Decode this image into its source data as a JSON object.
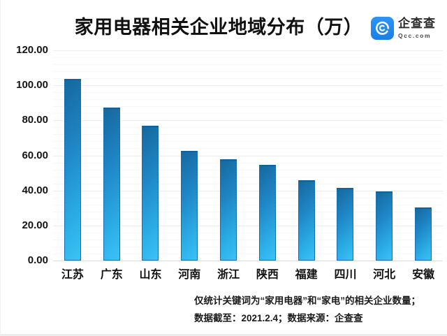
{
  "header": {
    "title": "家用电器相关企业地域分布（万）",
    "logo": {
      "name": "企查查",
      "domain": "Qcc.com",
      "brand_color": "#1f85ee"
    }
  },
  "chart_data": {
    "type": "bar",
    "title": "家用电器相关企业地域分布（万）",
    "categories": [
      "江苏",
      "广东",
      "山东",
      "河南",
      "浙江",
      "陕西",
      "福建",
      "四川",
      "河北",
      "安徽"
    ],
    "values": [
      103.5,
      87.5,
      77.0,
      62.5,
      58.0,
      54.5,
      46.0,
      41.5,
      39.5,
      30.5
    ],
    "xlabel": "",
    "ylabel": "",
    "ylim": [
      0,
      120
    ],
    "y_tick_labels": [
      "120.00",
      "100.00",
      "80.00",
      "60.00",
      "40.00",
      "20.00",
      "0.00"
    ],
    "y_major_step": 20,
    "y_minor_subdivisions": 5,
    "grid": "on",
    "legend": "none",
    "bar_color_dark": "#16689e",
    "bar_color_light": "#3ac3f6"
  },
  "footnote": {
    "line1": "仅统计关键词为“家用电器”和“家电”的相关企业数量；",
    "line2": "数据截至：2021.2.4；数据来源：企查查"
  }
}
